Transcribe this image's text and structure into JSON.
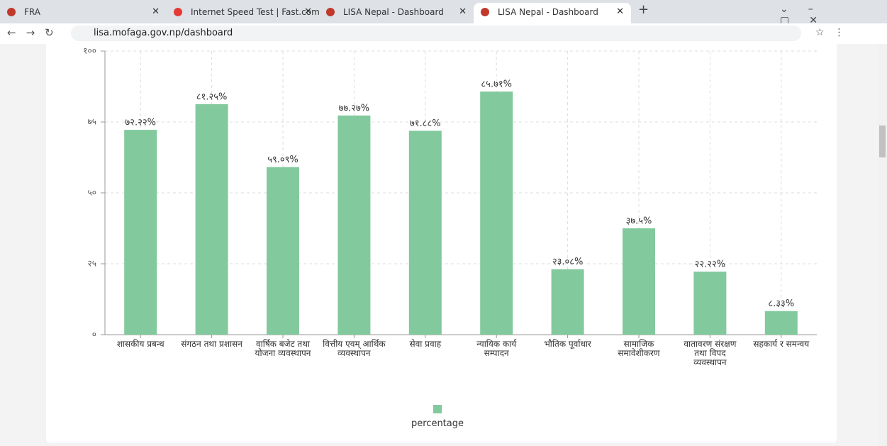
{
  "browser": {
    "tabs": [
      "FRA",
      "Internet Speed Test | Fast.com",
      "LISA Nepal - Dashboard",
      "LISA Nepal - Dashboard"
    ],
    "url": "lisa.mofaga.gov.np/dashboard"
  },
  "chart_data": {
    "type": "bar",
    "categories": [
      "शासकीय प्रबन्ध",
      "संगठन तथा प्रशासन",
      "वार्षिक बजेट तथा योजना व्यवस्थापन",
      "वित्तीय एवम् आर्थिक व्यवस्थापन",
      "सेवा प्रवाह",
      "न्यायिक कार्य सम्पादन",
      "भौतिक पूर्वाधार",
      "सामाजिक समावेशीकरण",
      "वातावरण संरक्षण तथा विपद व्यवस्थापन",
      "सहकार्य र समन्वय"
    ],
    "series": [
      {
        "name": "percentage",
        "color": "#82c99d",
        "values": [
          72.22,
          81.25,
          59.09,
          77.27,
          71.88,
          85.71,
          23.08,
          37.5,
          22.22,
          8.33
        ],
        "value_labels": [
          "७२.२२%",
          "८१.२५%",
          "५९.०९%",
          "७७.२७%",
          "७१.८८%",
          "८५.७१%",
          "२३.०८%",
          "३७.५%",
          "२२.२२%",
          "८.३३%"
        ]
      }
    ],
    "ylim": [
      0,
      100
    ],
    "yticks": [
      {
        "value": 0,
        "label": "०"
      },
      {
        "value": 25,
        "label": "२५"
      },
      {
        "value": 50,
        "label": "५०"
      },
      {
        "value": 75,
        "label": "७५"
      },
      {
        "value": 100,
        "label": "१००"
      }
    ],
    "grid": true
  }
}
